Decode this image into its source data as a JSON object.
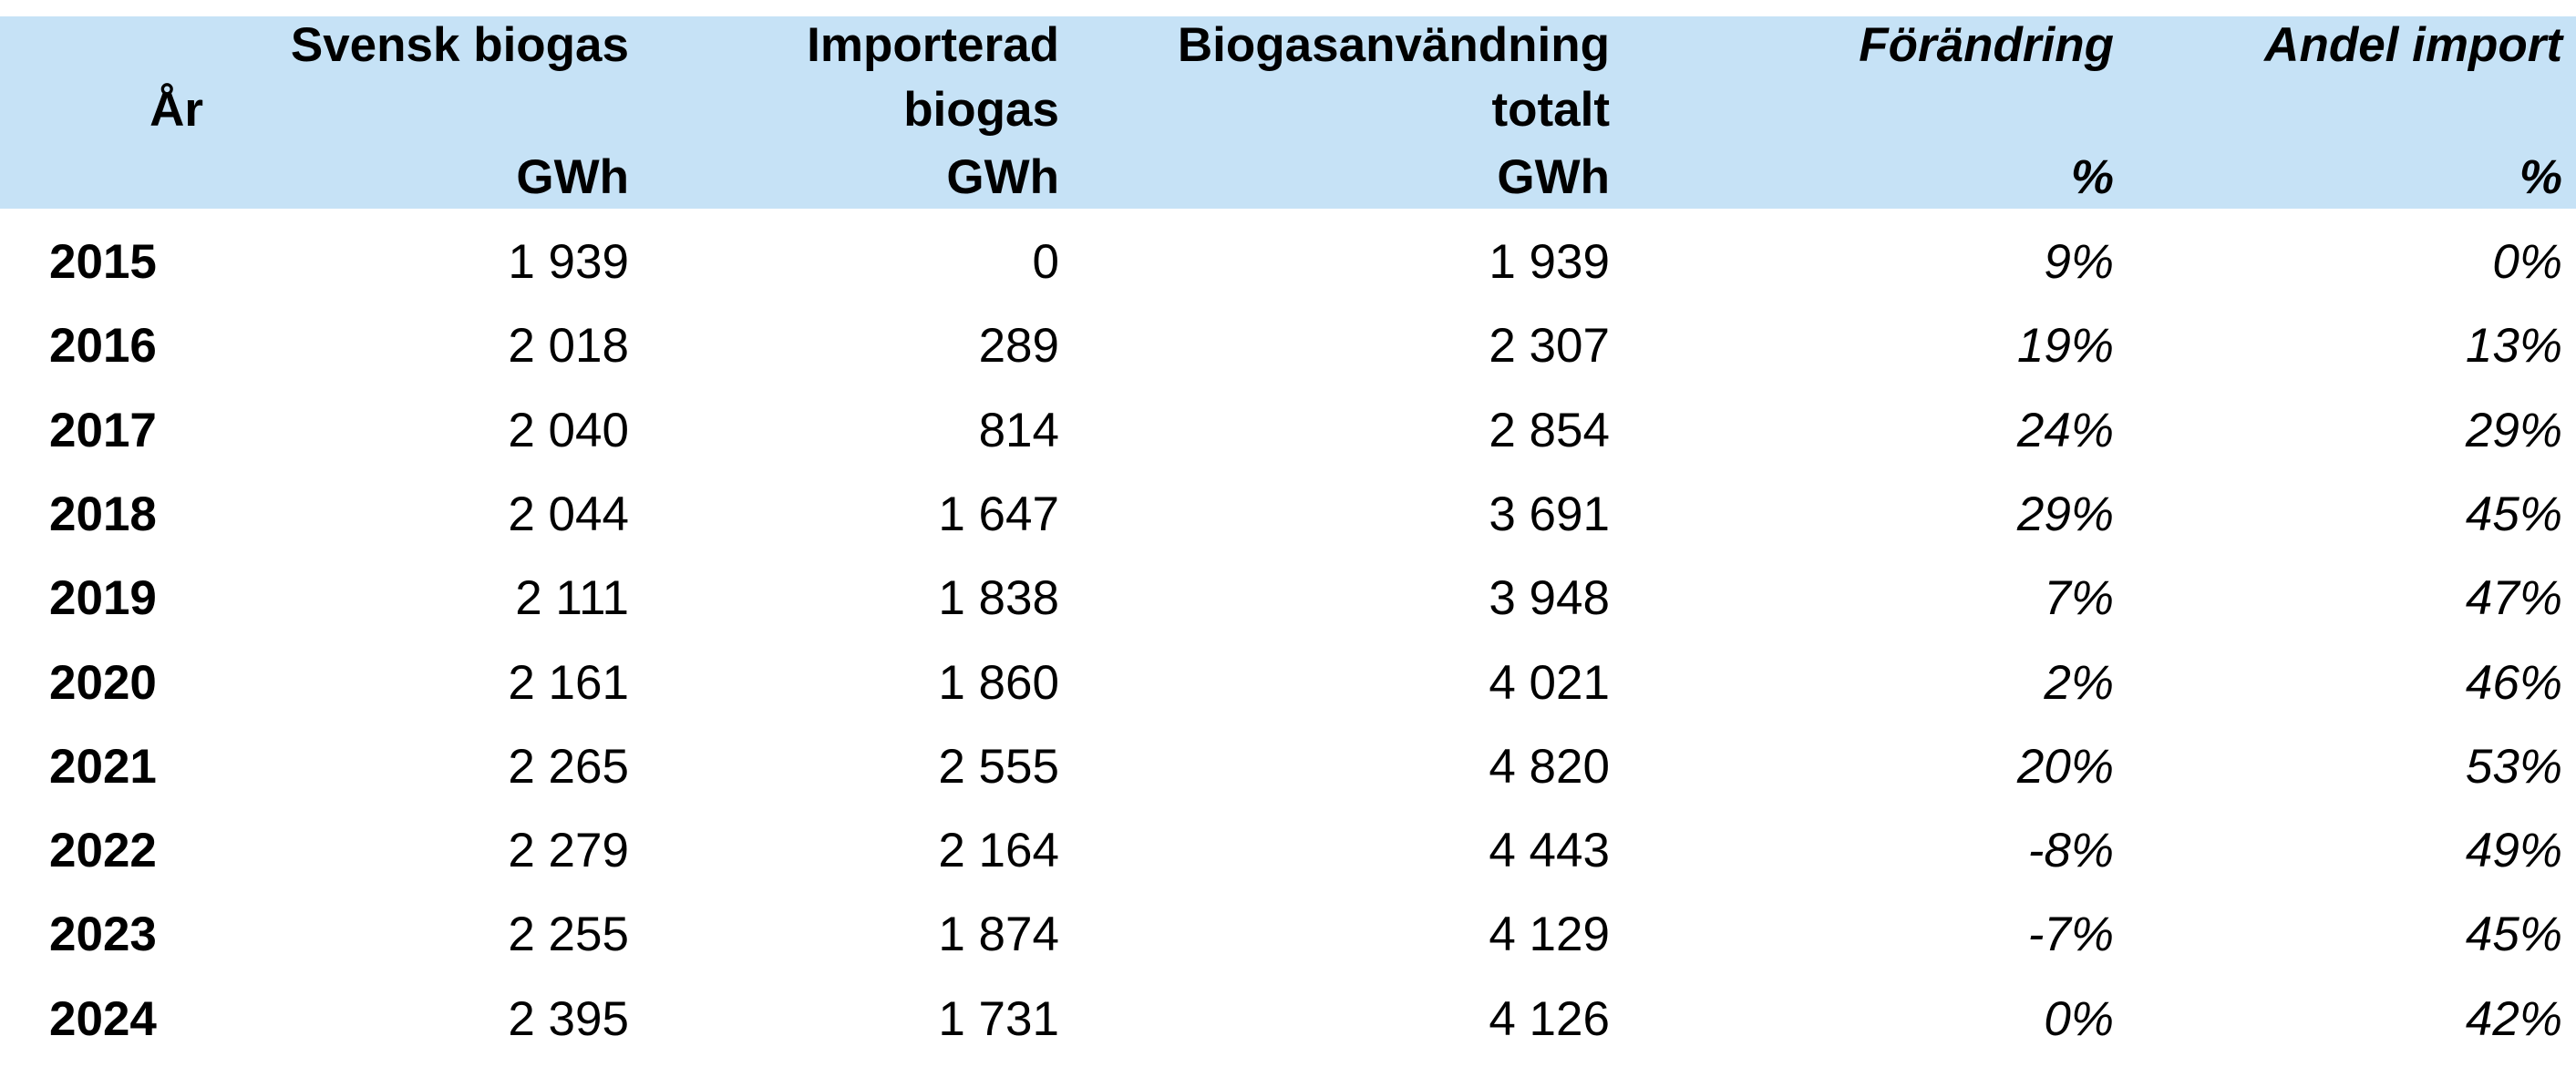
{
  "table": {
    "columns": [
      {
        "lines": [
          "År"
        ]
      },
      {
        "lines": [
          "Svensk biogas"
        ],
        "unit": "GWh"
      },
      {
        "lines": [
          "Importerad",
          "biogas"
        ],
        "unit": "GWh"
      },
      {
        "lines": [
          "Biogasanvändning",
          "totalt"
        ],
        "unit": "GWh"
      },
      {
        "lines": [
          "Förändring"
        ],
        "unit": "%"
      },
      {
        "lines": [
          "Andel import"
        ],
        "unit": "%"
      }
    ],
    "rows": [
      [
        "2015",
        "1 939",
        "0",
        "1 939",
        "9%",
        "0%"
      ],
      [
        "2016",
        "2 018",
        "289",
        "2 307",
        "19%",
        "13%"
      ],
      [
        "2017",
        "2 040",
        "814",
        "2 854",
        "24%",
        "29%"
      ],
      [
        "2018",
        "2 044",
        "1 647",
        "3 691",
        "29%",
        "45%"
      ],
      [
        "2019",
        "2 111",
        "1 838",
        "3 948",
        "7%",
        "47%"
      ],
      [
        "2020",
        "2 161",
        "1 860",
        "4 021",
        "2%",
        "46%"
      ],
      [
        "2021",
        "2 265",
        "2 555",
        "4 820",
        "20%",
        "53%"
      ],
      [
        "2022",
        "2 279",
        "2 164",
        "4 443",
        "-8%",
        "49%"
      ],
      [
        "2023",
        "2 255",
        "1 874",
        "4 129",
        "-7%",
        "45%"
      ],
      [
        "2024",
        "2 395",
        "1 731",
        "4 126",
        "0%",
        "42%"
      ]
    ]
  }
}
